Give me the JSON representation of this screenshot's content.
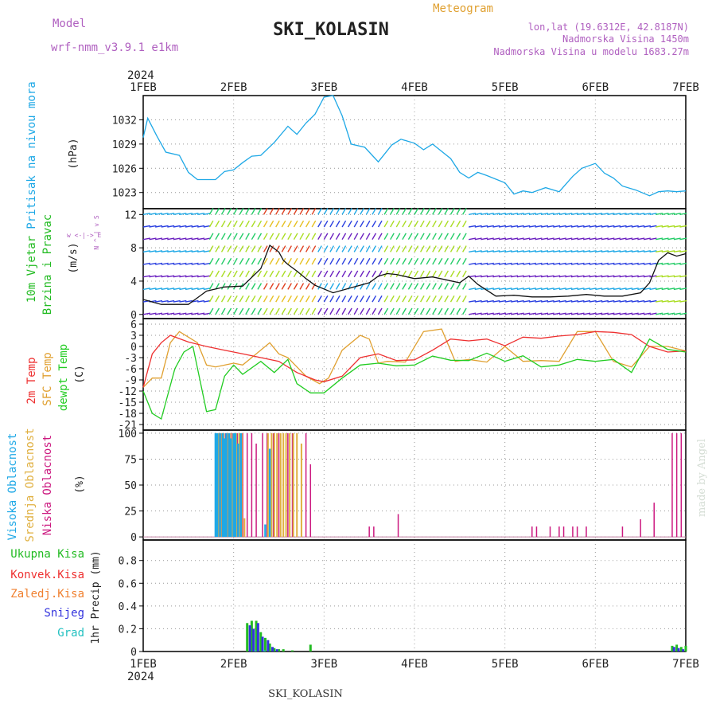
{
  "header": {
    "model_label": "Model",
    "model_name": "wrf-nmm_v3.9.1  e1km",
    "station": "SKI_KOLASIN",
    "subtitle": "Meteogram",
    "lonlat": "lon,lat (19.6312E, 42.8187N)",
    "elevation": "Nadmorska Visina 1450m",
    "model_elevation": "Nadmorska Visina u modelu 1683.27m"
  },
  "footer": {
    "station": "SKI_KOLASIN",
    "credit": "made by Angel"
  },
  "time_axis": {
    "year": "2024",
    "ticks": [
      "1FEB",
      "2FEB",
      "3FEB",
      "4FEB",
      "5FEB",
      "6FEB",
      "7FEB"
    ],
    "range_days": [
      0,
      6
    ]
  },
  "colors": {
    "pressure": "#1ea8e6",
    "t2m": "#ee3030",
    "tsfc": "#e0a030",
    "dewpt": "#22cc22",
    "high_cloud": "#1ea8e6",
    "mid_cloud": "#e0b040",
    "low_cloud": "#cc1a80",
    "precip_total": "#22bb22",
    "precip_conv": "#ee3030",
    "precip_frozen": "#f08030",
    "precip_snow": "#3333dd",
    "precip_graupel": "#22c0c0"
  },
  "panels": {
    "pressure": {
      "label": "Pritisak na nivou mora",
      "unit": "(hPa)",
      "ylim": [
        1021,
        1035
      ],
      "yticks": [
        1023,
        1026,
        1029,
        1032
      ]
    },
    "wind": {
      "label1": "10m Vjetar",
      "label2": "Brzina i Pravac",
      "unit": "(m/s)",
      "compass": "w <-|-> E",
      "compass_ns": "N ^ | v S",
      "ylim": [
        -0.5,
        12.7
      ],
      "yticks": [
        0,
        4,
        8,
        12
      ]
    },
    "temp": {
      "label_t2m": "2m Temp",
      "label_tsfc": "SFC Temp",
      "label_dew": "dewpt Temp",
      "unit": "(C)",
      "ylim": [
        -22.5,
        7.5
      ],
      "yticks": [
        6,
        3,
        0,
        -3,
        -6,
        -9,
        -12,
        -15,
        -18,
        -21
      ]
    },
    "cloud": {
      "label_high": "Visoka Oblacnost",
      "label_mid": "Srednja Oblacnost",
      "label_low": "Niska Oblacnost",
      "unit": "(%)",
      "ylim": [
        -3,
        103
      ],
      "yticks": [
        0,
        25,
        50,
        75,
        100
      ]
    },
    "precip": {
      "labels": [
        "Ukupna Kisa",
        "Konvek.Kisa",
        "Zaledj.Kisa",
        "Snijeg",
        "Grad"
      ],
      "unit": "1hr Precip (mm)",
      "ylim": [
        0,
        0.98
      ],
      "yticks": [
        0,
        0.2,
        0.4,
        0.6,
        0.8
      ]
    }
  },
  "chart_data": {
    "type": "line",
    "title": "SKI_KOLASIN",
    "x_unit": "days since 1FEB 2024 00Z",
    "pressure_hPa": {
      "x": [
        0,
        0.05,
        0.15,
        0.25,
        0.4,
        0.5,
        0.6,
        0.8,
        0.9,
        1.0,
        1.1,
        1.2,
        1.3,
        1.45,
        1.6,
        1.7,
        1.8,
        1.9,
        2.0,
        2.1,
        2.2,
        2.3,
        2.45,
        2.6,
        2.75,
        2.85,
        3.0,
        3.1,
        3.2,
        3.3,
        3.4,
        3.5,
        3.6,
        3.7,
        3.8,
        4.0,
        4.1,
        4.2,
        4.3,
        4.45,
        4.6,
        4.75,
        4.85,
        5.0,
        5.1,
        5.2,
        5.3,
        5.45,
        5.6,
        5.7,
        5.8,
        5.9,
        6.0
      ],
      "y": [
        1029.8,
        1032.2,
        1030,
        1028,
        1027.6,
        1025.5,
        1024.6,
        1024.6,
        1025.6,
        1025.8,
        1026.7,
        1027.5,
        1027.6,
        1029.2,
        1031.2,
        1030.2,
        1031.6,
        1032.7,
        1034.8,
        1035,
        1032.5,
        1029,
        1028.6,
        1026.8,
        1028.9,
        1029.6,
        1029.1,
        1028.3,
        1029,
        1028.1,
        1027.2,
        1025.5,
        1024.8,
        1025.5,
        1025.1,
        1024.2,
        1022.8,
        1023.2,
        1023,
        1023.6,
        1023.1,
        1025,
        1026,
        1026.6,
        1025.4,
        1024.8,
        1023.8,
        1023.3,
        1022.6,
        1023.1,
        1023.2,
        1023.1,
        1023.2
      ]
    },
    "wind_speed_ms": {
      "x": [
        0,
        0.2,
        0.5,
        0.7,
        0.9,
        1.1,
        1.3,
        1.4,
        1.5,
        1.55,
        1.6,
        1.7,
        1.8,
        1.9,
        2.1,
        2.3,
        2.5,
        2.6,
        2.7,
        2.8,
        3.0,
        3.2,
        3.5,
        3.6,
        3.7,
        3.9,
        4.1,
        4.3,
        4.5,
        4.7,
        4.9,
        5.1,
        5.3,
        5.5,
        5.6,
        5.7,
        5.8,
        5.9,
        6.0
      ],
      "y": [
        1.8,
        1.2,
        1.2,
        2.8,
        3.3,
        3.4,
        5.5,
        8.3,
        7.5,
        6.5,
        6,
        5.2,
        4.3,
        3.5,
        2.6,
        3.2,
        3.8,
        4.6,
        4.9,
        4.8,
        4.3,
        4.5,
        3.8,
        4.6,
        3.6,
        2.2,
        2.3,
        2.1,
        2.1,
        2.2,
        2.4,
        2.2,
        2.2,
        2.6,
        3.8,
        6.5,
        7.4,
        7.0,
        7.3
      ]
    },
    "temp_2m_C": {
      "x": [
        0,
        0.1,
        0.2,
        0.3,
        0.5,
        0.7,
        0.9,
        1.1,
        1.3,
        1.5,
        1.7,
        1.9,
        2.0,
        2.2,
        2.4,
        2.6,
        2.8,
        3.0,
        3.2,
        3.4,
        3.6,
        3.8,
        4.0,
        4.2,
        4.4,
        4.6,
        4.8,
        5.0,
        5.2,
        5.4,
        5.6,
        5.8,
        6.0
      ],
      "y": [
        -11,
        -2,
        1,
        3,
        1.2,
        0,
        -1,
        -2,
        -3,
        -4,
        -7,
        -9,
        -9.5,
        -8,
        -3,
        -2,
        -3.8,
        -3.6,
        -1,
        2,
        1.5,
        2,
        0.2,
        2.5,
        2.2,
        2.8,
        3.2,
        4,
        3.8,
        3.2,
        0,
        -1.5,
        -1.2
      ]
    },
    "temp_sfc_C": {
      "x": [
        0,
        0.1,
        0.2,
        0.3,
        0.4,
        0.6,
        0.7,
        0.8,
        1.0,
        1.1,
        1.2,
        1.4,
        1.5,
        1.6,
        1.7,
        1.8,
        1.95,
        2.05,
        2.2,
        2.4,
        2.5,
        2.6,
        2.7,
        2.9,
        3.1,
        3.3,
        3.45,
        3.6,
        3.8,
        4.0,
        4.2,
        4.4,
        4.6,
        4.8,
        5.0,
        5.2,
        5.4,
        5.6,
        5.8,
        6.0
      ],
      "y": [
        -11,
        -8.5,
        -8.5,
        1,
        4,
        1,
        -5,
        -5.5,
        -4.5,
        -5,
        -3,
        1,
        -2,
        -3,
        -5.5,
        -8,
        -10,
        -8.5,
        -1,
        3,
        2,
        -4.5,
        -4,
        -4.2,
        4,
        4.7,
        -4,
        -3.5,
        -4.2,
        0,
        -4,
        -3.8,
        -4,
        4,
        4,
        -4,
        -5.5,
        0,
        0,
        -1.2
      ]
    },
    "temp_dew_C": {
      "x": [
        0,
        0.1,
        0.2,
        0.25,
        0.35,
        0.45,
        0.55,
        0.7,
        0.8,
        0.9,
        1.0,
        1.1,
        1.3,
        1.45,
        1.6,
        1.7,
        1.85,
        2.0,
        2.2,
        2.4,
        2.6,
        2.8,
        3.0,
        3.2,
        3.4,
        3.6,
        3.8,
        4.0,
        4.2,
        4.4,
        4.6,
        4.8,
        5.0,
        5.2,
        5.4,
        5.6,
        5.8,
        6.0
      ],
      "y": [
        -12,
        -18,
        -19.5,
        -15,
        -6,
        -1.5,
        0,
        -17.5,
        -17,
        -8,
        -5,
        -7.5,
        -4,
        -7,
        -3.5,
        -10,
        -12.5,
        -12.5,
        -8.5,
        -5,
        -4.5,
        -5.2,
        -5,
        -2.6,
        -3.7,
        -3.8,
        -1.8,
        -4,
        -2.5,
        -5.5,
        -5,
        -3.5,
        -4,
        -3.5,
        -7,
        2,
        -0.8,
        -1.5
      ]
    },
    "cloud_high_pct": {
      "x": [
        0.8,
        0.82,
        0.85,
        0.88,
        0.9,
        0.92,
        0.95,
        0.97,
        1.0,
        1.02,
        1.05,
        1.08,
        1.35,
        1.4
      ],
      "y": [
        100,
        100,
        100,
        100,
        95,
        100,
        100,
        95,
        100,
        100,
        90,
        100,
        12,
        85
      ]
    },
    "cloud_mid_pct": {
      "x": [
        0.83,
        0.86,
        0.89,
        0.93,
        0.96,
        0.99,
        1.03,
        1.06,
        1.09,
        1.12,
        1.38,
        1.42,
        1.45,
        1.48,
        1.52,
        1.55,
        1.58,
        1.62,
        1.66,
        1.7,
        1.75
      ],
      "y": [
        100,
        100,
        100,
        100,
        100,
        100,
        100,
        100,
        100,
        18,
        100,
        100,
        100,
        100,
        100,
        100,
        100,
        100,
        100,
        100,
        90
      ]
    },
    "cloud_low_pct": {
      "x": [
        -0.5,
        0.81,
        0.84,
        0.87,
        0.91,
        0.94,
        0.98,
        1.01,
        1.04,
        1.1,
        1.15,
        1.2,
        1.25,
        1.32,
        1.37,
        1.44,
        1.5,
        1.55,
        1.6,
        1.65,
        1.7,
        1.8,
        1.85,
        2.5,
        2.55,
        2.82,
        4.3,
        4.35,
        4.5,
        4.6,
        4.65,
        4.75,
        4.8,
        4.9,
        5.3,
        5.5,
        5.65,
        5.85,
        5.9,
        5.95
      ],
      "y": [
        9,
        100,
        100,
        100,
        100,
        100,
        100,
        100,
        100,
        100,
        100,
        100,
        90,
        100,
        100,
        100,
        100,
        36,
        100,
        100,
        100,
        100,
        70,
        10,
        10,
        22,
        10,
        10,
        10,
        10,
        10,
        10,
        10,
        10,
        10,
        17,
        33,
        100,
        100,
        100
      ]
    },
    "precip_total_mm": {
      "x": [
        1.15,
        1.2,
        1.25,
        1.3,
        1.35,
        1.4,
        1.45,
        1.5,
        1.55,
        1.65,
        1.85,
        5.85,
        5.9,
        5.95,
        6.0
      ],
      "y": [
        0.25,
        0.27,
        0.27,
        0.17,
        0.12,
        0.07,
        0.03,
        0.02,
        0.02,
        0.01,
        0.06,
        0.05,
        0.06,
        0.04,
        0.05
      ]
    },
    "precip_snow_mm": {
      "x": [
        1.18,
        1.22,
        1.27,
        1.32,
        1.38,
        1.43,
        1.48,
        5.87,
        5.92,
        5.97
      ],
      "y": [
        0.23,
        0.2,
        0.25,
        0.13,
        0.1,
        0.04,
        0.02,
        0.04,
        0.03,
        0.02
      ]
    },
    "precip_conv_mm": {
      "x": [
        1.85,
        5.9
      ],
      "y": [
        0.0,
        0.0
      ]
    },
    "precip_frozen_mm": {
      "x": [],
      "y": []
    },
    "precip_graupel_mm": {
      "x": [
        1.24,
        1.34
      ],
      "y": [
        0.01,
        0.01
      ]
    }
  }
}
